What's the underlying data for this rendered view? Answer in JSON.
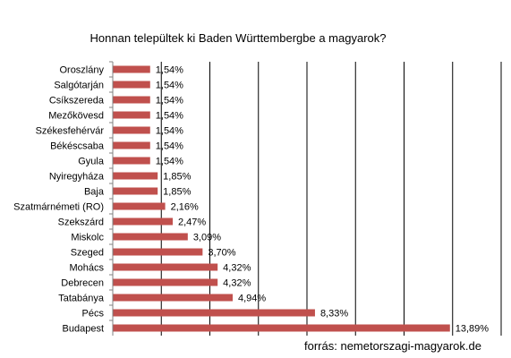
{
  "title": "Honnan települtek ki Baden Württembergbe a magyarok?",
  "source": "forrás: nemetorszagi-magyarok.de",
  "colors": {
    "bar": "#c0504d",
    "grid": "#000000",
    "axis": "#808080"
  },
  "chart_data": {
    "type": "bar",
    "orientation": "horizontal",
    "title": "Honnan települtek ki Baden Württembergbe a magyarok?",
    "categories": [
      "Oroszlány",
      "Salgótarján",
      "Csíkszereda",
      "Mezőkövesd",
      "Székesfehérvár",
      "Békéscsaba",
      "Gyula",
      "Nyiregyháza",
      "Baja",
      "Szatmárnémeti (RO)",
      "Szekszárd",
      "Miskolc",
      "Szeged",
      "Mohács",
      "Debrecen",
      "Tatabánya",
      "Pécs",
      "Budapest"
    ],
    "values": [
      1.54,
      1.54,
      1.54,
      1.54,
      1.54,
      1.54,
      1.54,
      1.85,
      1.85,
      2.16,
      2.47,
      3.09,
      3.7,
      4.32,
      4.32,
      4.94,
      8.33,
      13.89
    ],
    "labels": [
      "1,54%",
      "1,54%",
      "1,54%",
      "1,54%",
      "1,54%",
      "1,54%",
      "1,54%",
      "1,85%",
      "1,85%",
      "2,16%",
      "2,47%",
      "3,09%",
      "3,70%",
      "4,32%",
      "4,32%",
      "4,94%",
      "8,33%",
      "13,89%"
    ],
    "xlim": [
      0,
      16
    ],
    "grid": true,
    "legend": "none"
  }
}
